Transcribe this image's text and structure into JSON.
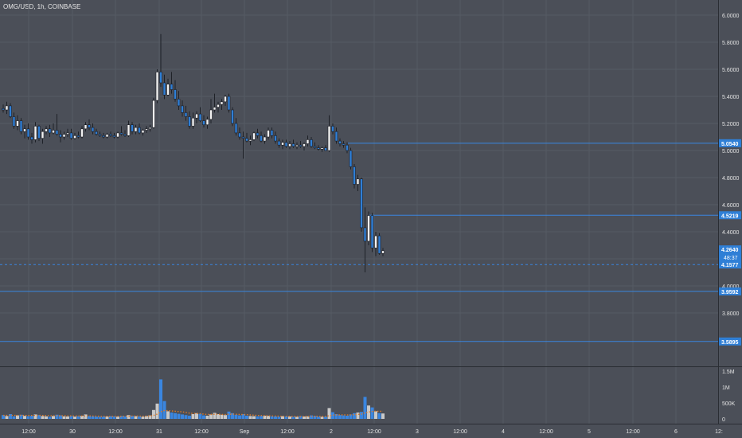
{
  "header": {
    "symbol": "OMG/USD, 1h, COINBASE"
  },
  "colors": {
    "background": "#4b4f58",
    "grid": "#565b64",
    "axis_text": "#e2e2e2",
    "up_body": "#f2f2f2",
    "down_body": "#2f7fd6",
    "wick": "#1e2127",
    "hline": "#3a86e0",
    "label_bg": "#2f7fd6",
    "label_text": "#ffffff",
    "vol_up": "#c9c9c9",
    "vol_down": "#3a86e0",
    "vol_ma": "#e07b26"
  },
  "chart_data": [
    {
      "type": "candlestick",
      "ylim": [
        3.5,
        6.1
      ],
      "y_ticks": [
        "6.0000",
        "5.8000",
        "5.6000",
        "5.4000",
        "5.2000",
        "5.0000",
        "4.8000",
        "4.6000",
        "4.4000",
        "4.2000",
        "4.0000",
        "3.8000"
      ],
      "x_ticks": [
        "12:00",
        "30",
        "12:00",
        "31",
        "12:00",
        "Sep",
        "12:00",
        "2",
        "12:00",
        "3",
        "12:00",
        "4",
        "12:00",
        "5",
        "12:00",
        "6",
        "12:"
      ],
      "horizontal_lines": [
        {
          "value": 5.054,
          "label": "5.0540",
          "style": "solid"
        },
        {
          "value": 4.5219,
          "label": "4.5219",
          "style": "solid"
        },
        {
          "value": 4.1577,
          "label": "4.1577",
          "style": "dashed"
        },
        {
          "value": 3.9592,
          "label": "3.9592",
          "style": "solid"
        },
        {
          "value": 3.5895,
          "label": "3.5895",
          "style": "solid"
        }
      ],
      "last_price": {
        "value": 4.264,
        "label": "4.2640",
        "countdown": "48:37"
      },
      "candles": [
        [
          5.31,
          5.34,
          5.28,
          5.3
        ],
        [
          5.3,
          5.36,
          5.27,
          5.33
        ],
        [
          5.33,
          5.35,
          5.24,
          5.25
        ],
        [
          5.25,
          5.28,
          5.16,
          5.18
        ],
        [
          5.18,
          5.26,
          5.15,
          5.22
        ],
        [
          5.22,
          5.24,
          5.12,
          5.14
        ],
        [
          5.14,
          5.19,
          5.09,
          5.16
        ],
        [
          5.16,
          5.2,
          5.08,
          5.1
        ],
        [
          5.1,
          5.13,
          5.05,
          5.08
        ],
        [
          5.08,
          5.21,
          5.06,
          5.18
        ],
        [
          5.18,
          5.19,
          5.07,
          5.09
        ],
        [
          5.09,
          5.16,
          5.05,
          5.14
        ],
        [
          5.14,
          5.18,
          5.12,
          5.16
        ],
        [
          5.16,
          5.19,
          5.1,
          5.13
        ],
        [
          5.13,
          5.2,
          5.12,
          5.15
        ],
        [
          5.15,
          5.27,
          5.11,
          5.12
        ],
        [
          5.12,
          5.15,
          5.06,
          5.1
        ],
        [
          5.1,
          5.14,
          5.08,
          5.12
        ],
        [
          5.12,
          5.16,
          5.1,
          5.13
        ],
        [
          5.13,
          5.16,
          5.08,
          5.09
        ],
        [
          5.09,
          5.13,
          5.08,
          5.11
        ],
        [
          5.11,
          5.14,
          5.09,
          5.1
        ],
        [
          5.1,
          5.18,
          5.09,
          5.16
        ],
        [
          5.16,
          5.21,
          5.14,
          5.19
        ],
        [
          5.19,
          5.23,
          5.15,
          5.17
        ],
        [
          5.17,
          5.2,
          5.12,
          5.14
        ],
        [
          5.14,
          5.16,
          5.11,
          5.12
        ],
        [
          5.12,
          5.14,
          5.1,
          5.11
        ],
        [
          5.11,
          5.13,
          5.09,
          5.1
        ],
        [
          5.1,
          5.13,
          5.09,
          5.12
        ],
        [
          5.12,
          5.14,
          5.1,
          5.11
        ],
        [
          5.11,
          5.13,
          5.09,
          5.1
        ],
        [
          5.1,
          5.14,
          5.09,
          5.13
        ],
        [
          5.13,
          5.18,
          5.11,
          5.12
        ],
        [
          5.12,
          5.15,
          5.1,
          5.11
        ],
        [
          5.11,
          5.22,
          5.1,
          5.19
        ],
        [
          5.19,
          5.21,
          5.12,
          5.14
        ],
        [
          5.14,
          5.19,
          5.12,
          5.17
        ],
        [
          5.17,
          5.2,
          5.12,
          5.13
        ],
        [
          5.13,
          5.16,
          5.11,
          5.15
        ],
        [
          5.15,
          5.18,
          5.13,
          5.16
        ],
        [
          5.16,
          5.19,
          5.14,
          5.17
        ],
        [
          5.17,
          5.39,
          5.16,
          5.37
        ],
        [
          5.37,
          5.6,
          5.35,
          5.58
        ],
        [
          5.58,
          5.86,
          5.47,
          5.5
        ],
        [
          5.5,
          5.56,
          5.38,
          5.41
        ],
        [
          5.41,
          5.53,
          5.4,
          5.49
        ],
        [
          5.49,
          5.58,
          5.42,
          5.45
        ],
        [
          5.45,
          5.52,
          5.36,
          5.38
        ],
        [
          5.38,
          5.44,
          5.3,
          5.33
        ],
        [
          5.33,
          5.37,
          5.25,
          5.28
        ],
        [
          5.28,
          5.33,
          5.22,
          5.25
        ],
        [
          5.25,
          5.29,
          5.16,
          5.18
        ],
        [
          5.18,
          5.28,
          5.16,
          5.24
        ],
        [
          5.24,
          5.29,
          5.2,
          5.27
        ],
        [
          5.27,
          5.32,
          5.21,
          5.22
        ],
        [
          5.22,
          5.26,
          5.17,
          5.19
        ],
        [
          5.19,
          5.25,
          5.16,
          5.23
        ],
        [
          5.23,
          5.38,
          5.2,
          5.3
        ],
        [
          5.3,
          5.42,
          5.28,
          5.32
        ],
        [
          5.32,
          5.36,
          5.28,
          5.34
        ],
        [
          5.34,
          5.38,
          5.3,
          5.36
        ],
        [
          5.36,
          5.41,
          5.33,
          5.4
        ],
        [
          5.4,
          5.42,
          5.28,
          5.3
        ],
        [
          5.3,
          5.32,
          5.18,
          5.2
        ],
        [
          5.2,
          5.24,
          5.11,
          5.13
        ],
        [
          5.13,
          5.17,
          5.08,
          5.1
        ],
        [
          5.1,
          5.14,
          4.94,
          5.09
        ],
        [
          5.09,
          5.13,
          5.06,
          5.07
        ],
        [
          5.07,
          5.11,
          5.04,
          5.08
        ],
        [
          5.08,
          5.14,
          5.07,
          5.13
        ],
        [
          5.13,
          5.16,
          5.09,
          5.11
        ],
        [
          5.11,
          5.14,
          5.06,
          5.07
        ],
        [
          5.07,
          5.12,
          5.05,
          5.1
        ],
        [
          5.1,
          5.17,
          5.08,
          5.15
        ],
        [
          5.15,
          5.17,
          5.09,
          5.11
        ],
        [
          5.11,
          5.14,
          5.05,
          5.07
        ],
        [
          5.07,
          5.09,
          5.02,
          5.04
        ],
        [
          5.04,
          5.08,
          5.01,
          5.06
        ],
        [
          5.06,
          5.08,
          5.02,
          5.03
        ],
        [
          5.03,
          5.07,
          5.01,
          5.05
        ],
        [
          5.05,
          5.08,
          5.02,
          5.03
        ],
        [
          5.03,
          5.06,
          5.01,
          5.04
        ],
        [
          5.04,
          5.07,
          5.02,
          5.03
        ],
        [
          5.03,
          5.06,
          5.0,
          5.05
        ],
        [
          5.05,
          5.11,
          5.03,
          5.08
        ],
        [
          5.08,
          5.1,
          5.02,
          5.03
        ],
        [
          5.03,
          5.06,
          5.01,
          5.02
        ],
        [
          5.02,
          5.04,
          5.0,
          5.01
        ],
        [
          5.01,
          5.03,
          4.99,
          5.02
        ],
        [
          5.02,
          5.04,
          5.0,
          5.0
        ],
        [
          5.0,
          5.26,
          4.99,
          5.18
        ],
        [
          5.18,
          5.2,
          5.12,
          5.14
        ],
        [
          5.14,
          5.17,
          5.05,
          5.07
        ],
        [
          5.07,
          5.09,
          5.03,
          5.05
        ],
        [
          5.05,
          5.07,
          5.02,
          5.04
        ],
        [
          5.04,
          5.06,
          4.98,
          5.0
        ],
        [
          5.0,
          5.02,
          4.86,
          4.88
        ],
        [
          4.88,
          4.9,
          4.72,
          4.75
        ],
        [
          4.75,
          4.82,
          4.7,
          4.79
        ],
        [
          4.79,
          4.8,
          4.4,
          4.43
        ],
        [
          4.43,
          4.58,
          4.1,
          4.33
        ],
        [
          4.33,
          4.55,
          4.3,
          4.52
        ],
        [
          4.52,
          4.54,
          4.25,
          4.28
        ],
        [
          4.28,
          4.4,
          4.22,
          4.37
        ],
        [
          4.37,
          4.39,
          4.23,
          4.24
        ],
        [
          4.24,
          4.28,
          4.22,
          4.26
        ]
      ]
    },
    {
      "type": "bar",
      "name": "volume",
      "y_ticks": [
        "1.5M",
        "1M",
        "500K",
        "0"
      ],
      "ylim": [
        0,
        1600000
      ],
      "values": [
        120000,
        90000,
        150000,
        80000,
        110000,
        130000,
        95000,
        85000,
        100000,
        140000,
        120000,
        90000,
        80000,
        70000,
        90000,
        130000,
        110000,
        80000,
        75000,
        90000,
        70000,
        85000,
        100000,
        140000,
        90000,
        80000,
        70000,
        65000,
        70000,
        75000,
        85000,
        80000,
        70000,
        90000,
        80000,
        120000,
        95000,
        85000,
        80000,
        70000,
        90000,
        110000,
        280000,
        480000,
        1240000,
        560000,
        240000,
        200000,
        180000,
        160000,
        140000,
        120000,
        100000,
        150000,
        180000,
        160000,
        110000,
        100000,
        140000,
        190000,
        150000,
        130000,
        120000,
        230000,
        180000,
        130000,
        110000,
        150000,
        100000,
        90000,
        85000,
        80000,
        90000,
        100000,
        95000,
        80000,
        75000,
        70000,
        85000,
        80000,
        75000,
        70000,
        65000,
        90000,
        75000,
        80000,
        110000,
        90000,
        70000,
        65000,
        70000,
        340000,
        210000,
        150000,
        120000,
        110000,
        100000,
        140000,
        180000,
        200000,
        220000,
        690000,
        420000,
        360000,
        240000,
        180000,
        170000
      ],
      "ma": [
        110000,
        110000,
        112000,
        110000,
        108000,
        110000,
        108000,
        106000,
        106000,
        108000,
        110000,
        108000,
        104000,
        100000,
        98000,
        100000,
        100000,
        98000,
        96000,
        94000,
        92000,
        90000,
        92000,
        96000,
        94000,
        90000,
        86000,
        82000,
        80000,
        80000,
        80000,
        80000,
        80000,
        82000,
        82000,
        86000,
        88000,
        88000,
        88000,
        86000,
        86000,
        90000,
        110000,
        150000,
        230000,
        260000,
        260000,
        250000,
        240000,
        230000,
        220000,
        200000,
        180000,
        170000,
        170000,
        165000,
        150000,
        140000,
        140000,
        145000,
        145000,
        140000,
        135000,
        145000,
        150000,
        145000,
        140000,
        138000,
        132000,
        125000,
        115000,
        108000,
        104000,
        100000,
        96000,
        92000,
        88000,
        84000,
        82000,
        80000,
        78000,
        76000,
        74000,
        76000,
        76000,
        76000,
        80000,
        82000,
        80000,
        78000,
        76000,
        100000,
        118000,
        124000,
        126000,
        126000,
        124000,
        126000,
        132000,
        140000,
        150000,
        190000,
        215000,
        235000,
        240000,
        240000,
        238000
      ]
    }
  ]
}
